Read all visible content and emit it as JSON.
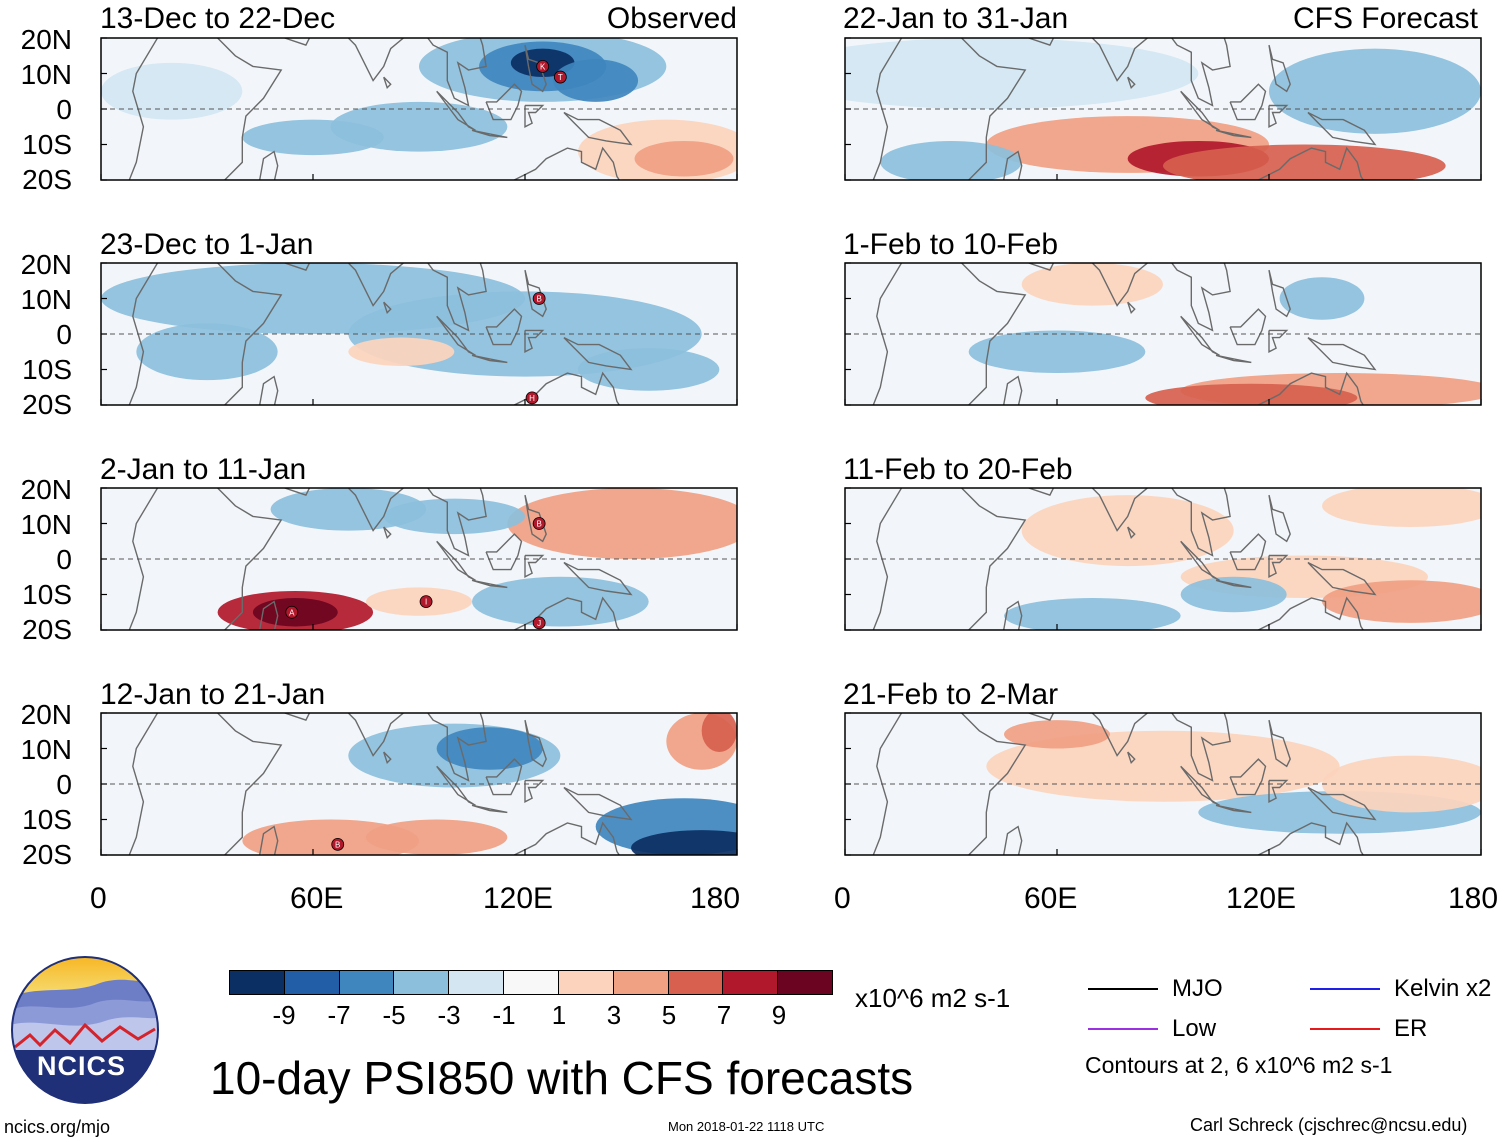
{
  "panels": [
    {
      "period": "13-Dec to 22-Dec",
      "tag": "Observed",
      "storms": [
        {
          "code": "K",
          "lon": 125,
          "lat": 12
        },
        {
          "code": "T",
          "lon": 130,
          "lat": 9
        }
      ]
    },
    {
      "period": "22-Jan to 31-Jan",
      "tag": "CFS Forecast",
      "storms": []
    },
    {
      "period": "23-Dec to 1-Jan",
      "tag": "",
      "storms": [
        {
          "code": "B",
          "lon": 124,
          "lat": 10
        },
        {
          "code": "H",
          "lon": 122,
          "lat": -18
        }
      ]
    },
    {
      "period": "1-Feb to 10-Feb",
      "tag": "",
      "storms": []
    },
    {
      "period": "2-Jan to 11-Jan",
      "tag": "",
      "storms": [
        {
          "code": "B",
          "lon": 124,
          "lat": 10
        },
        {
          "code": "A",
          "lon": 54,
          "lat": -15
        },
        {
          "code": "I",
          "lon": 92,
          "lat": -12
        },
        {
          "code": "J",
          "lon": 124,
          "lat": -18
        }
      ]
    },
    {
      "period": "11-Feb to 20-Feb",
      "tag": "",
      "storms": []
    },
    {
      "period": "12-Jan to 21-Jan",
      "tag": "",
      "storms": [
        {
          "code": "B",
          "lon": 67,
          "lat": -17
        }
      ]
    },
    {
      "period": "21-Feb to 2-Mar",
      "tag": "",
      "storms": []
    }
  ],
  "axes": {
    "lat_labels": [
      "20N",
      "10N",
      "0",
      "10S",
      "20S"
    ],
    "lon_labels": [
      "0",
      "60E",
      "120E",
      "180"
    ]
  },
  "colorbar": {
    "tick_labels": [
      "-9",
      "-7",
      "-5",
      "-3",
      "-1",
      "1",
      "3",
      "5",
      "7",
      "9"
    ],
    "colors": [
      "#0b2f63",
      "#225ea8",
      "#3f86be",
      "#8cbfdc",
      "#d3e6f2",
      "#f8f8f8",
      "#fcd4bd",
      "#f0a083",
      "#d7604e",
      "#b1182b",
      "#6b0420"
    ],
    "units": "x10^6 m2 s-1"
  },
  "title": "10-day PSI850 with CFS forecasts",
  "legend": {
    "items": [
      {
        "label": "MJO",
        "color": "#000000"
      },
      {
        "label": "Kelvin x2",
        "color": "#1f1fe8"
      },
      {
        "label": "Low",
        "color": "#9b30e0"
      },
      {
        "label": "ER",
        "color": "#e41a1c"
      }
    ],
    "note": "Contours at 2, 6 x10^6 m2 s-1"
  },
  "logo": {
    "text": "NCICS"
  },
  "footer": {
    "url": "ncics.org/mjo",
    "timestamp": "Mon 2018-01-22 1118 UTC",
    "credit": "Carl Schreck (cjschrec@ncsu.edu)"
  }
}
